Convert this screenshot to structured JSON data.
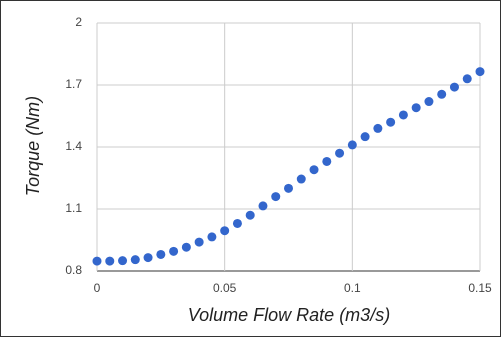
{
  "chart_data": {
    "type": "scatter",
    "x_label": "Volume Flow Rate (m3/s)",
    "y_label": "Torque (Nm)",
    "series": [
      {
        "name": "Torque",
        "color": "#3366cc",
        "x": [
          0,
          0.005,
          0.01,
          0.015,
          0.02,
          0.025,
          0.03,
          0.035,
          0.04,
          0.045,
          0.05,
          0.055,
          0.06,
          0.065,
          0.07,
          0.075,
          0.08,
          0.085,
          0.09,
          0.095,
          0.1,
          0.105,
          0.11,
          0.115,
          0.12,
          0.125,
          0.13,
          0.135,
          0.14,
          0.145,
          0.15
        ],
        "values": [
          0.848,
          0.848,
          0.85,
          0.855,
          0.865,
          0.88,
          0.895,
          0.915,
          0.94,
          0.965,
          0.995,
          1.03,
          1.07,
          1.115,
          1.16,
          1.2,
          1.245,
          1.29,
          1.33,
          1.37,
          1.41,
          1.45,
          1.49,
          1.52,
          1.555,
          1.59,
          1.62,
          1.655,
          1.69,
          1.73,
          1.765
        ]
      }
    ],
    "xlim": [
      0,
      0.15
    ],
    "xticks": [
      0,
      0.05,
      0.1,
      0.15
    ],
    "ylim": [
      0.8,
      2
    ],
    "yticks": [
      0.8,
      1.1,
      1.4,
      1.7,
      2
    ],
    "grid": true
  }
}
